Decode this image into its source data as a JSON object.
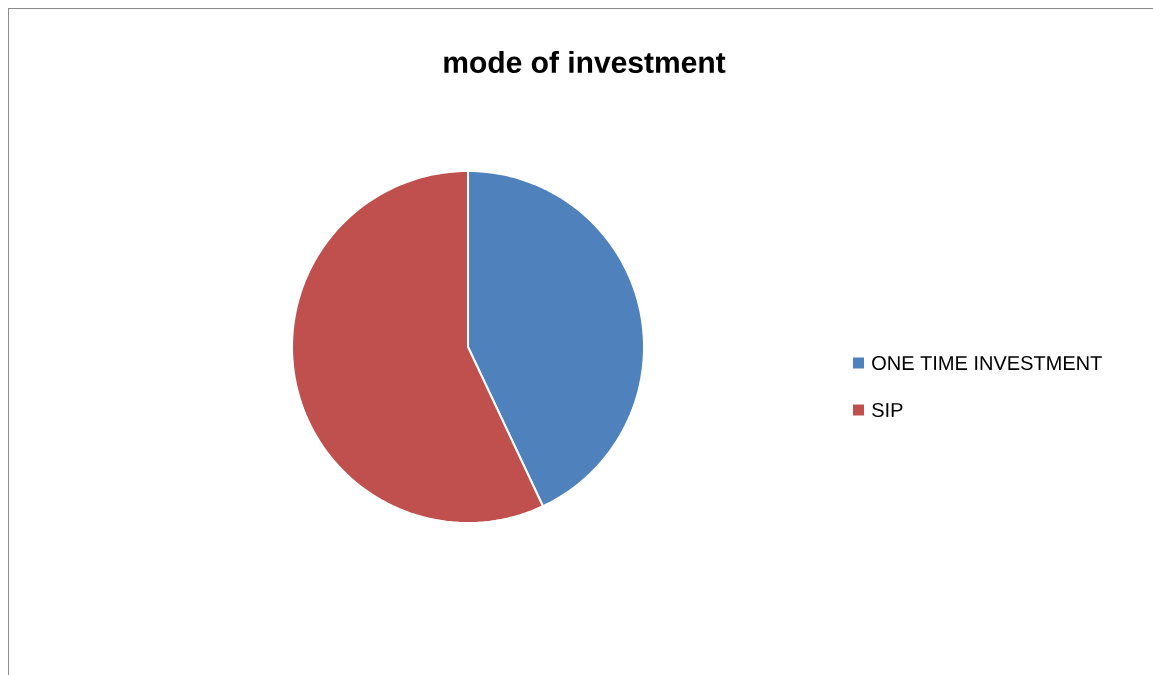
{
  "chart_data": {
    "type": "pie",
    "title": "mode of investment",
    "categories": [
      "ONE TIME INVESTMENT",
      "SIP"
    ],
    "values": [
      43,
      57
    ],
    "colors": [
      "#4f81bd",
      "#c0504d"
    ],
    "legend": "right"
  }
}
